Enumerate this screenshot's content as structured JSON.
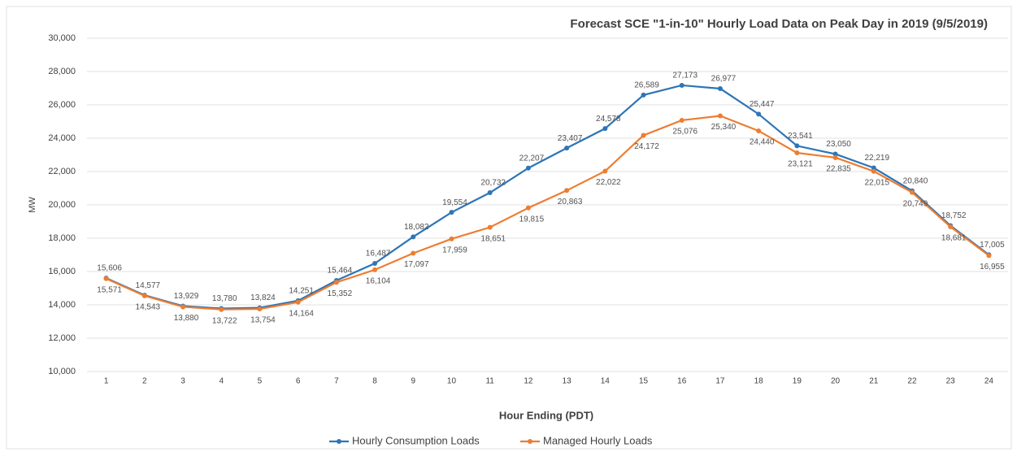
{
  "chart_data": {
    "type": "line",
    "title": "Forecast SCE \"1-in-10\" Hourly Load Data on Peak Day in 2019 (9/5/2019)",
    "x_label": "Hour Ending (PDT)",
    "y_label": "MW",
    "categories": [
      "1",
      "2",
      "3",
      "4",
      "5",
      "6",
      "7",
      "8",
      "9",
      "10",
      "11",
      "12",
      "13",
      "14",
      "15",
      "16",
      "17",
      "18",
      "19",
      "20",
      "21",
      "22",
      "23",
      "24"
    ],
    "series": [
      {
        "name": "Hourly Consumption Loads",
        "color": "#2e75b6",
        "values": [
          15606,
          14577,
          13929,
          13780,
          13824,
          14251,
          15464,
          16487,
          18082,
          19554,
          20732,
          22207,
          23407,
          24578,
          26589,
          27173,
          26977,
          25447,
          23541,
          23050,
          22219,
          20840,
          18752,
          17005
        ],
        "value_labels": [
          "15,606",
          "14,577",
          "13,929",
          "13,780",
          "13,824",
          "14,251",
          "15,464",
          "16,487",
          "18,082",
          "19,554",
          "20,732",
          "22,207",
          "23,407",
          "24,578",
          "26,589",
          "27,173",
          "26,977",
          "25,447",
          "23,541",
          "23,050",
          "22,219",
          "20,840",
          "18,752",
          "17,005"
        ]
      },
      {
        "name": "Managed Hourly Loads",
        "color": "#ed7d31",
        "values": [
          15571,
          14543,
          13880,
          13722,
          13754,
          14164,
          15352,
          16104,
          17097,
          17959,
          18651,
          19815,
          20863,
          22022,
          24172,
          25076,
          25340,
          24440,
          23121,
          22835,
          22015,
          20749,
          18681,
          16955
        ],
        "value_labels": [
          "15,571",
          "14,543",
          "13,880",
          "13,722",
          "13,754",
          "14,164",
          "15,352",
          "16,104",
          "17,097",
          "17,959",
          "18,651",
          "19,815",
          "20,863",
          "22,022",
          "24,172",
          "25,076",
          "25,340",
          "24,440",
          "23,121",
          "22,835",
          "22,015",
          "20,749",
          "18,681",
          "16,955"
        ]
      }
    ],
    "ylim": [
      10000,
      30000
    ],
    "yticks": [
      {
        "value": 10000,
        "label": "10,000"
      },
      {
        "value": 12000,
        "label": "12,000"
      },
      {
        "value": 14000,
        "label": "14,000"
      },
      {
        "value": 16000,
        "label": "16,000"
      },
      {
        "value": 18000,
        "label": "18,000"
      },
      {
        "value": 20000,
        "label": "20,000"
      },
      {
        "value": 22000,
        "label": "22,000"
      },
      {
        "value": 24000,
        "label": "24,000"
      },
      {
        "value": 26000,
        "label": "26,000"
      },
      {
        "value": 28000,
        "label": "28,000"
      },
      {
        "value": 30000,
        "label": "30,000"
      }
    ],
    "grid": true,
    "legend": "bottom"
  }
}
